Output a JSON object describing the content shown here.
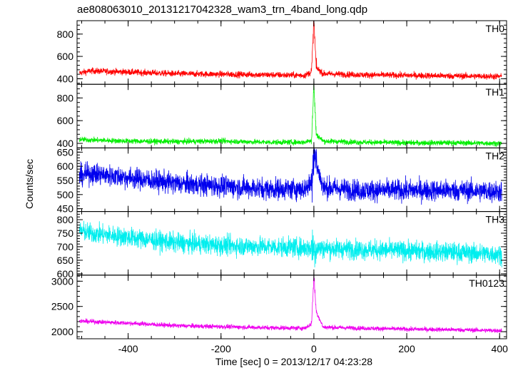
{
  "chart_data": {
    "type": "line",
    "title": "ae808063010_20131217042328_wam3_trn_4band_long.qdp",
    "xlabel": "Time [sec] 0 = 2013/12/17 04:23:28",
    "ylabel": "Counts/sec",
    "xlim": [
      -510,
      415
    ],
    "x_ticks": [
      "-400",
      "-200",
      "0",
      "200",
      "400"
    ],
    "x_tick_values": [
      -400,
      -200,
      0,
      200,
      400
    ],
    "grid": false,
    "panels": [
      {
        "name": "TH0",
        "color": "#ff0000",
        "ylim": [
          350,
          920
        ],
        "y_ticks": [
          400,
          600,
          800
        ],
        "y_tick_labels": [
          "400",
          "600",
          "800"
        ],
        "points": [
          [
            -505,
            450
          ],
          [
            -480,
            470
          ],
          [
            -400,
            460
          ],
          [
            -300,
            445
          ],
          [
            -200,
            440
          ],
          [
            -100,
            435
          ],
          [
            -20,
            430
          ],
          [
            -5,
            460
          ],
          [
            0,
            920
          ],
          [
            5,
            500
          ],
          [
            20,
            445
          ],
          [
            100,
            435
          ],
          [
            200,
            430
          ],
          [
            300,
            425
          ],
          [
            405,
            420
          ]
        ]
      },
      {
        "name": "TH1",
        "color": "#00ee00",
        "ylim": [
          360,
          920
        ],
        "y_ticks": [
          400,
          600,
          800
        ],
        "y_tick_labels": [
          "400",
          "600",
          "800"
        ],
        "points": [
          [
            -505,
            435
          ],
          [
            -480,
            430
          ],
          [
            -400,
            420
          ],
          [
            -300,
            415
          ],
          [
            -200,
            420
          ],
          [
            -100,
            410
          ],
          [
            -20,
            410
          ],
          [
            -5,
            430
          ],
          [
            0,
            920
          ],
          [
            5,
            480
          ],
          [
            20,
            420
          ],
          [
            100,
            410
          ],
          [
            200,
            405
          ],
          [
            300,
            405
          ],
          [
            405,
            400
          ]
        ]
      },
      {
        "name": "TH2",
        "color": "#0000ee",
        "ylim": [
          440,
          665
        ],
        "y_ticks": [
          450,
          500,
          550,
          600,
          650
        ],
        "y_tick_labels": [
          "450",
          "500",
          "550",
          "600",
          "650"
        ],
        "points": [
          [
            -505,
            565
          ],
          [
            -480,
            575
          ],
          [
            -400,
            560
          ],
          [
            -300,
            540
          ],
          [
            -200,
            530
          ],
          [
            -100,
            520
          ],
          [
            -20,
            520
          ],
          [
            -5,
            540
          ],
          [
            0,
            665
          ],
          [
            5,
            610
          ],
          [
            20,
            525
          ],
          [
            100,
            515
          ],
          [
            200,
            515
          ],
          [
            300,
            515
          ],
          [
            405,
            510
          ]
        ]
      },
      {
        "name": "TH3",
        "color": "#00eeee",
        "ylim": [
          595,
          830
        ],
        "y_ticks": [
          600,
          650,
          700,
          750,
          800
        ],
        "y_tick_labels": [
          "600",
          "650",
          "700",
          "750",
          "800"
        ],
        "points": [
          [
            -505,
            760
          ],
          [
            -480,
            750
          ],
          [
            -400,
            735
          ],
          [
            -300,
            715
          ],
          [
            -200,
            705
          ],
          [
            -100,
            700
          ],
          [
            0,
            695
          ],
          [
            100,
            690
          ],
          [
            200,
            685
          ],
          [
            300,
            680
          ],
          [
            405,
            672
          ]
        ]
      },
      {
        "name": "TH0123",
        "color": "#ee00ee",
        "ylim": [
          1860,
          3120
        ],
        "y_ticks": [
          2000,
          2500,
          3000
        ],
        "y_tick_labels": [
          "2000",
          "2500",
          "3000"
        ],
        "points": [
          [
            -505,
            2210
          ],
          [
            -480,
            2200
          ],
          [
            -400,
            2170
          ],
          [
            -300,
            2120
          ],
          [
            -200,
            2100
          ],
          [
            -100,
            2080
          ],
          [
            -20,
            2070
          ],
          [
            -5,
            2150
          ],
          [
            0,
            3120
          ],
          [
            5,
            2400
          ],
          [
            20,
            2090
          ],
          [
            100,
            2070
          ],
          [
            200,
            2050
          ],
          [
            300,
            2040
          ],
          [
            405,
            2020
          ]
        ]
      }
    ]
  }
}
